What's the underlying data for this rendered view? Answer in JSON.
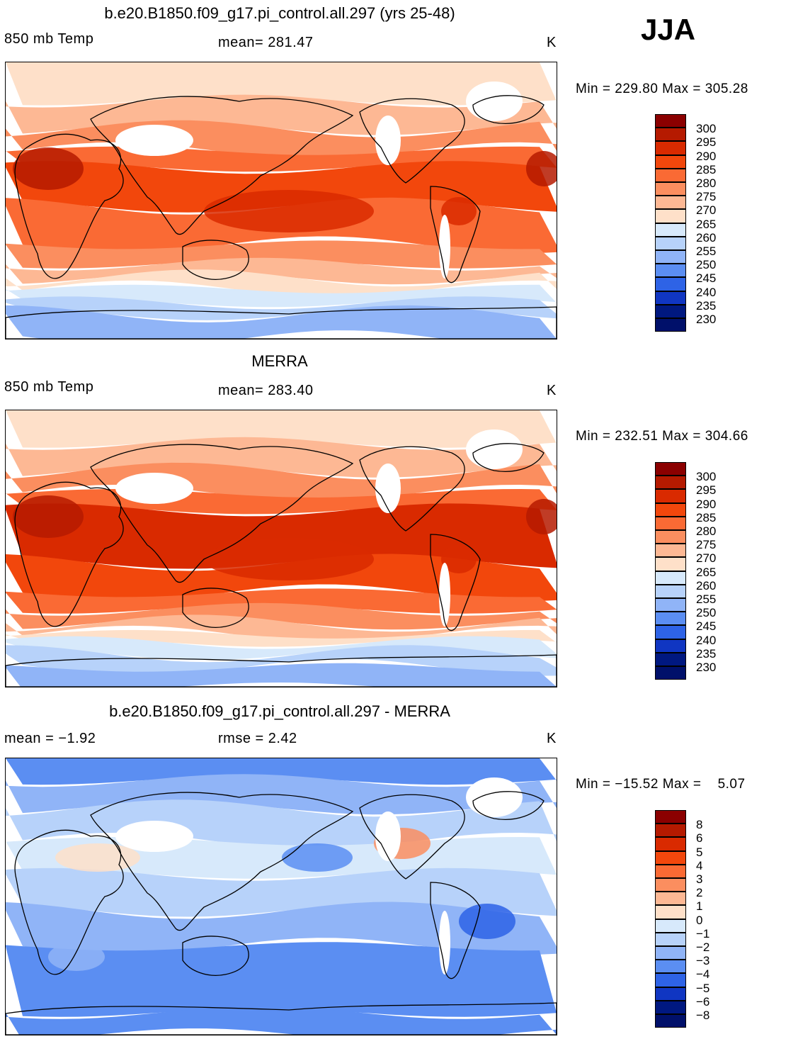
{
  "season": "JJA",
  "panels": [
    {
      "id": "model",
      "title": "b.e20.B1850.f09_g17.pi_control.all.297 (yrs 25-48)",
      "left_label": "850 mb Temp",
      "center_label": "mean= 281.47",
      "units": "K",
      "minmax": "Min = 229.80 Max = 305.28",
      "colorbar_labels": [
        "300",
        "295",
        "290",
        "285",
        "280",
        "275",
        "270",
        "265",
        "260",
        "255",
        "250",
        "245",
        "240",
        "235",
        "230"
      ],
      "colorbar_colors": [
        "#8b0000",
        "#b51a00",
        "#d92a00",
        "#f2470c",
        "#fa6a34",
        "#fb8e5f",
        "#fdb894",
        "#fee0c9",
        "#ffffff",
        "#d7e9fb",
        "#b7d2fa",
        "#90b4f7",
        "#5b8ef2",
        "#2e63e6",
        "#1036c2",
        "#001880",
        "#00106a"
      ],
      "profile": [
        {
          "y": 0,
          "c": "#fee0c9"
        },
        {
          "y": 14,
          "c": "#fdb894"
        },
        {
          "y": 24,
          "c": "#fb8e5f"
        },
        {
          "y": 32,
          "c": "#fa6a34"
        },
        {
          "y": 38,
          "c": "#f2470c"
        },
        {
          "y": 52,
          "c": "#fa6a34"
        },
        {
          "y": 66,
          "c": "#fb8e5f"
        },
        {
          "y": 73,
          "c": "#fdb894"
        },
        {
          "y": 78,
          "c": "#fee0c9"
        },
        {
          "y": 82,
          "c": "#d7e9fb"
        },
        {
          "y": 87,
          "c": "#b7d2fa"
        },
        {
          "y": 91,
          "c": "#90b4f7"
        },
        {
          "y": 100,
          "c": "#5b8ef2"
        }
      ]
    },
    {
      "id": "obs",
      "title": "MERRA",
      "left_label": "850 mb Temp",
      "center_label": "mean= 283.40",
      "units": "K",
      "minmax": "Min = 232.51 Max = 304.66",
      "colorbar_labels": [
        "300",
        "295",
        "290",
        "285",
        "280",
        "275",
        "270",
        "265",
        "260",
        "255",
        "250",
        "245",
        "240",
        "235",
        "230"
      ],
      "colorbar_colors": [
        "#8b0000",
        "#b51a00",
        "#d92a00",
        "#f2470c",
        "#fa6a34",
        "#fb8e5f",
        "#fdb894",
        "#fee0c9",
        "#ffffff",
        "#d7e9fb",
        "#b7d2fa",
        "#90b4f7",
        "#5b8ef2",
        "#2e63e6",
        "#1036c2",
        "#001880",
        "#00106a"
      ],
      "profile": [
        {
          "y": 0,
          "c": "#fee0c9"
        },
        {
          "y": 12,
          "c": "#fdb894"
        },
        {
          "y": 22,
          "c": "#fb8e5f"
        },
        {
          "y": 30,
          "c": "#fa6a34"
        },
        {
          "y": 36,
          "c": "#d92a00"
        },
        {
          "y": 55,
          "c": "#f2470c"
        },
        {
          "y": 66,
          "c": "#fa6a34"
        },
        {
          "y": 72,
          "c": "#fb8e5f"
        },
        {
          "y": 77,
          "c": "#fdb894"
        },
        {
          "y": 81,
          "c": "#fee0c9"
        },
        {
          "y": 84,
          "c": "#d7e9fb"
        },
        {
          "y": 88,
          "c": "#b7d2fa"
        },
        {
          "y": 93,
          "c": "#90b4f7"
        },
        {
          "y": 100,
          "c": "#5b8ef2"
        }
      ]
    },
    {
      "id": "diff",
      "title": "b.e20.B1850.f09_g17.pi_control.all.297 - MERRA",
      "left_label": "mean =   −1.92",
      "center_label": "rmse =    2.42",
      "units": "K",
      "minmax": "Min = −15.52 Max =    5.07",
      "colorbar_labels": [
        "8",
        "6",
        "5",
        "4",
        "3",
        "2",
        "1",
        "0",
        "−1",
        "−2",
        "−3",
        "−4",
        "−5",
        "−6",
        "−8"
      ],
      "colorbar_colors": [
        "#8b0000",
        "#b51a00",
        "#d92a00",
        "#f2470c",
        "#fa6a34",
        "#fb8e5f",
        "#fdb894",
        "#fee0c9",
        "#ffffff",
        "#d7e9fb",
        "#b7d2fa",
        "#90b4f7",
        "#5b8ef2",
        "#2e63e6",
        "#1036c2",
        "#001880",
        "#00106a"
      ],
      "profile": [
        {
          "y": 0,
          "c": "#5b8ef2"
        },
        {
          "y": 8,
          "c": "#90b4f7"
        },
        {
          "y": 18,
          "c": "#b7d2fa"
        },
        {
          "y": 30,
          "c": "#d7e9fb"
        },
        {
          "y": 42,
          "c": "#b7d2fa"
        },
        {
          "y": 55,
          "c": "#90b4f7"
        },
        {
          "y": 68,
          "c": "#5b8ef2"
        },
        {
          "y": 92,
          "c": "#5b8ef2"
        },
        {
          "y": 100,
          "c": "#2e63e6"
        }
      ]
    }
  ]
}
